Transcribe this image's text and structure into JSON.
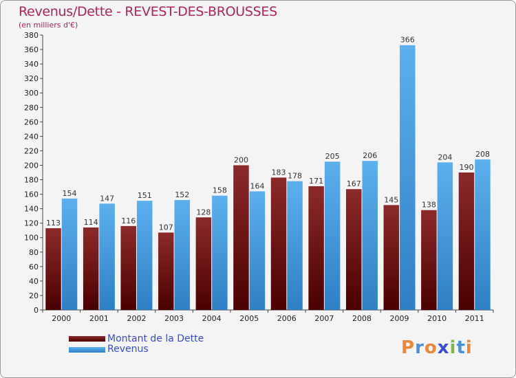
{
  "title": "Revenus/Dette - REVEST-DES-BROUSSES",
  "subtitle": "(en milliers d'€)",
  "logo": {
    "text": "Proxiti",
    "letters": [
      "P",
      "r",
      "o",
      "x",
      "i",
      "t",
      "i"
    ],
    "colors": [
      "#e8883a",
      "#4a90d8",
      "#e8883a",
      "#3b4ad8",
      "#7ab648",
      "#4a90d8",
      "#e8883a"
    ]
  },
  "chart_data": {
    "type": "bar",
    "title": "Revenus/Dette - REVEST-DES-BROUSSES",
    "ylabel": "(en milliers d'€)",
    "categories": [
      "2000",
      "2001",
      "2002",
      "2003",
      "2004",
      "2005",
      "2006",
      "2007",
      "2008",
      "2009",
      "2010",
      "2011"
    ],
    "series": [
      {
        "name": "Montant de la Dette",
        "values": [
          113,
          114,
          116,
          107,
          128,
          200,
          183,
          171,
          167,
          145,
          138,
          190
        ],
        "color_top": "#8c2a2a",
        "color_bottom": "#4a0000"
      },
      {
        "name": "Revenus",
        "values": [
          154,
          147,
          151,
          152,
          158,
          164,
          178,
          205,
          206,
          366,
          204,
          208
        ],
        "color_top": "#5cb0ee",
        "color_bottom": "#2f7fc4"
      }
    ],
    "yticks": [
      0,
      20,
      40,
      60,
      80,
      100,
      120,
      140,
      160,
      180,
      200,
      220,
      240,
      260,
      280,
      300,
      320,
      340,
      360,
      380
    ],
    "ylim": [
      0,
      380
    ],
    "grid": false,
    "legend_position": "bottom-left"
  }
}
